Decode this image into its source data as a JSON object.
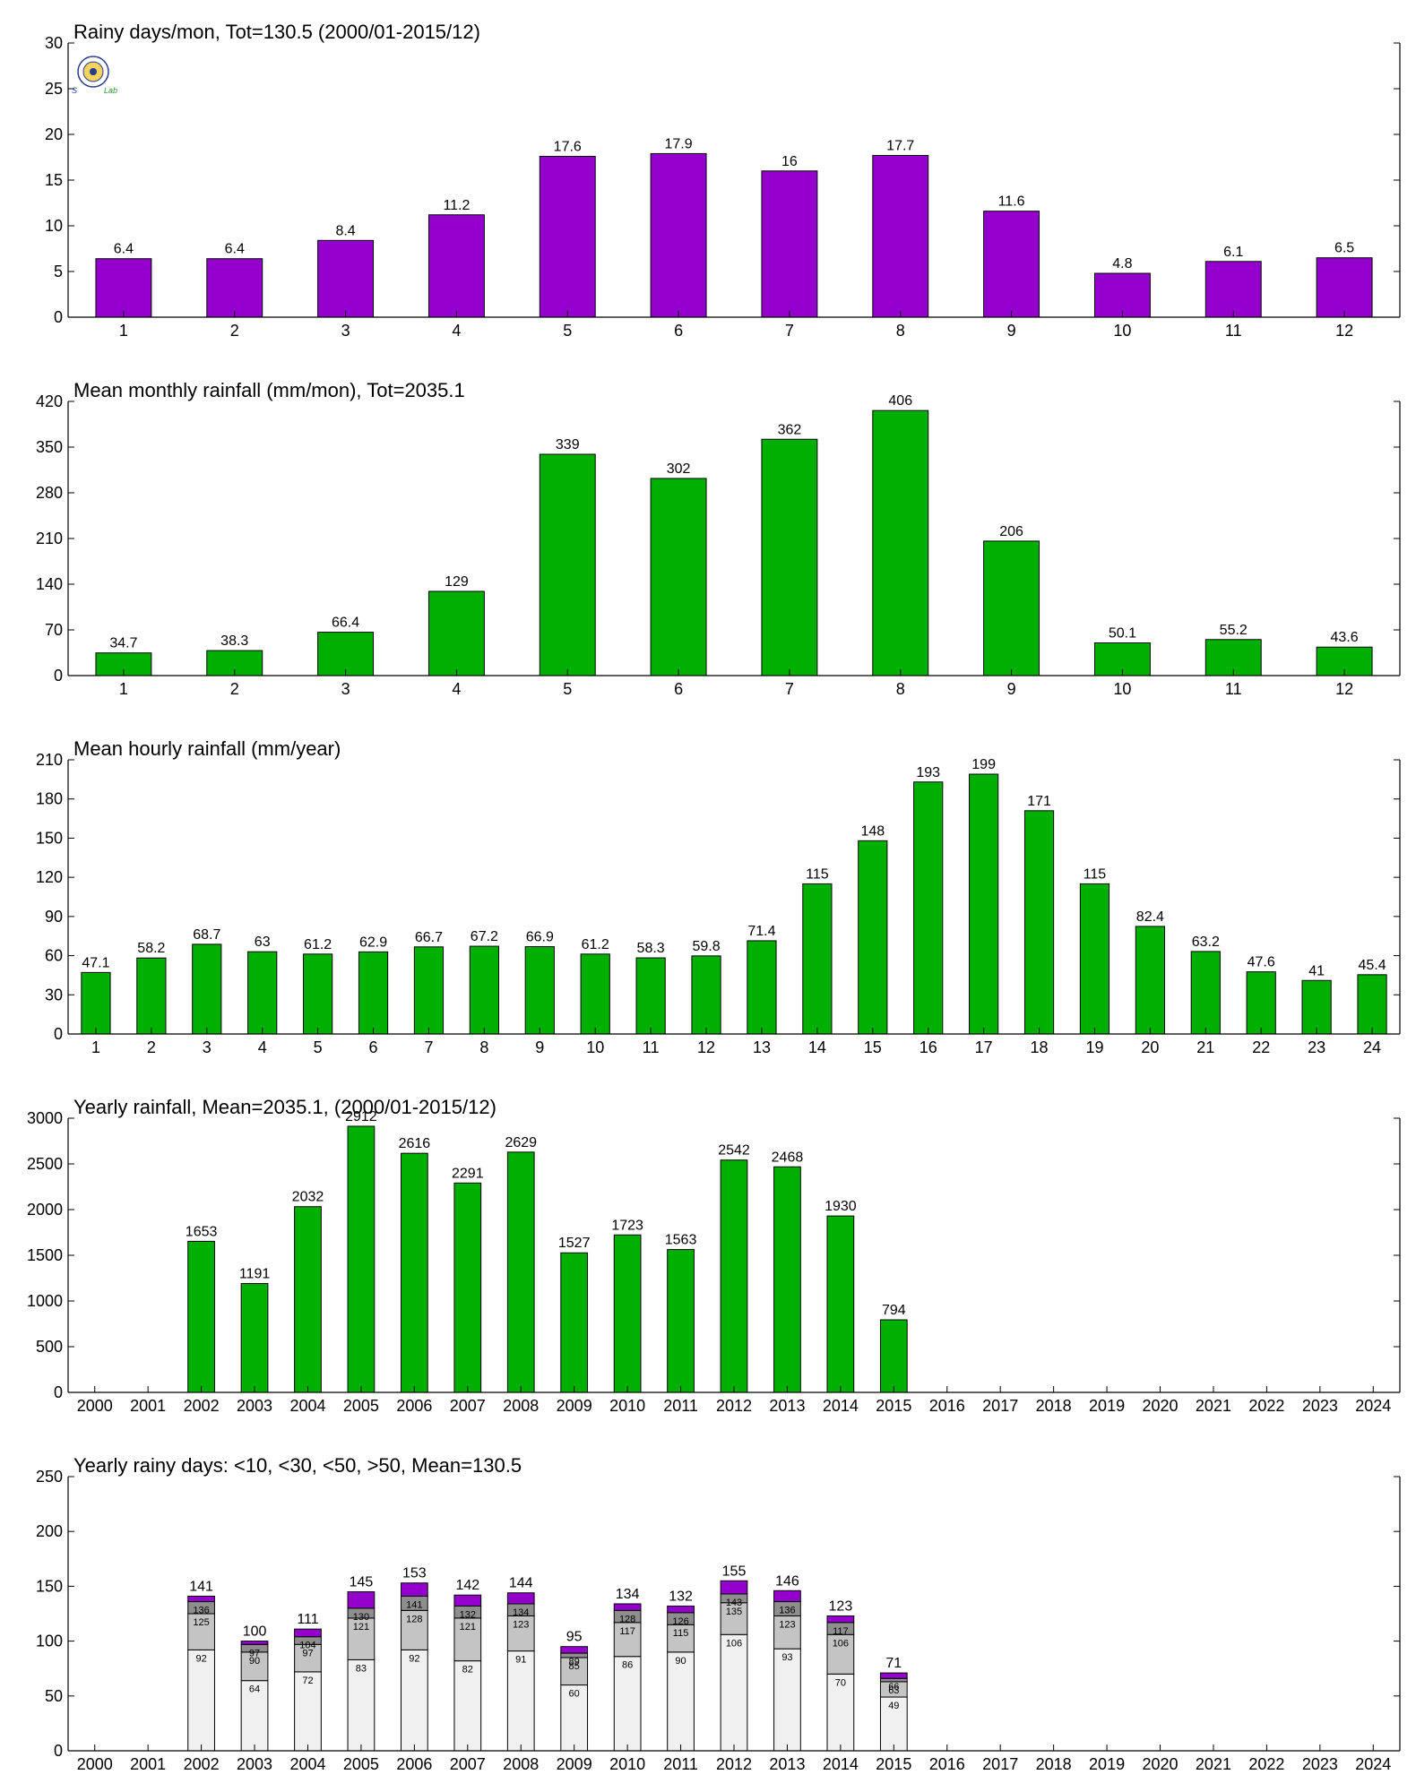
{
  "colors": {
    "purple": "#9400cc",
    "green": "#00b000",
    "stack": [
      "#f0f0f0",
      "#c4c4c4",
      "#8e8e8e",
      "#9400cc"
    ],
    "axis": "#000000"
  },
  "logo": {
    "icon": "weather-lab-logo",
    "text_left": "S",
    "text_right": "Lab"
  },
  "chart_data": [
    {
      "type": "bar",
      "title": "Rainy days/mon, Tot=130.5 (2000/01-2015/12)",
      "categories": [
        "1",
        "2",
        "3",
        "4",
        "5",
        "6",
        "7",
        "8",
        "9",
        "10",
        "11",
        "12"
      ],
      "values": [
        6.4,
        6.4,
        8.4,
        11.2,
        17.6,
        17.9,
        16,
        17.7,
        11.6,
        4.8,
        6.1,
        6.5
      ],
      "labels": [
        "6.4",
        "6.4",
        "8.4",
        "11.2",
        "17.6",
        "17.9",
        "16",
        "17.7",
        "11.6",
        "4.8",
        "6.1",
        "6.5"
      ],
      "ylim": [
        0,
        30
      ],
      "yticks": [
        0,
        5,
        10,
        15,
        20,
        25,
        30
      ],
      "color": "purple"
    },
    {
      "type": "bar",
      "title": "Mean monthly rainfall (mm/mon), Tot=2035.1",
      "categories": [
        "1",
        "2",
        "3",
        "4",
        "5",
        "6",
        "7",
        "8",
        "9",
        "10",
        "11",
        "12"
      ],
      "values": [
        34.7,
        38.3,
        66.4,
        129,
        339,
        302,
        362,
        406,
        206,
        50.1,
        55.2,
        43.6
      ],
      "labels": [
        "34.7",
        "38.3",
        "66.4",
        "129",
        "339",
        "302",
        "362",
        "406",
        "206",
        "50.1",
        "55.2",
        "43.6"
      ],
      "ylim": [
        0,
        420
      ],
      "yticks": [
        0,
        70,
        140,
        210,
        280,
        350,
        420
      ],
      "color": "green"
    },
    {
      "type": "bar",
      "title": "Mean hourly rainfall (mm/year)",
      "categories": [
        "1",
        "2",
        "3",
        "4",
        "5",
        "6",
        "7",
        "8",
        "9",
        "10",
        "11",
        "12",
        "13",
        "14",
        "15",
        "16",
        "17",
        "18",
        "19",
        "20",
        "21",
        "22",
        "23",
        "24"
      ],
      "values": [
        47.1,
        58.2,
        68.7,
        63,
        61.2,
        62.9,
        66.7,
        67.2,
        66.9,
        61.2,
        58.3,
        59.8,
        71.4,
        115,
        148,
        193,
        199,
        171,
        115,
        82.4,
        63.2,
        47.6,
        41,
        45.4
      ],
      "labels": [
        "47.1",
        "58.2",
        "68.7",
        "63",
        "61.2",
        "62.9",
        "66.7",
        "67.2",
        "66.9",
        "61.2",
        "58.3",
        "59.8",
        "71.4",
        "115",
        "148",
        "193",
        "199",
        "171",
        "115",
        "82.4",
        "63.2",
        "47.6",
        "41",
        "45.4"
      ],
      "ylim": [
        0,
        210
      ],
      "yticks": [
        0,
        30,
        60,
        90,
        120,
        150,
        180,
        210
      ],
      "color": "green"
    },
    {
      "type": "bar",
      "title": "Yearly rainfall, Mean=2035.1, (2000/01-2015/12)",
      "categories": [
        "2000",
        "2001",
        "2002",
        "2003",
        "2004",
        "2005",
        "2006",
        "2007",
        "2008",
        "2009",
        "2010",
        "2011",
        "2012",
        "2013",
        "2014",
        "2015",
        "2016",
        "2017",
        "2018",
        "2019",
        "2020",
        "2021",
        "2022",
        "2023",
        "2024"
      ],
      "values": [
        null,
        null,
        1653,
        1191,
        2032,
        2912,
        2616,
        2291,
        2629,
        1527,
        1723,
        1563,
        2542,
        2468,
        1930,
        794,
        null,
        null,
        null,
        null,
        null,
        null,
        null,
        null,
        null
      ],
      "labels": [
        "",
        "",
        "1653",
        "1191",
        "2032",
        "2912",
        "2616",
        "2291",
        "2629",
        "1527",
        "1723",
        "1563",
        "2542",
        "2468",
        "1930",
        "794",
        "",
        "",
        "",
        "",
        "",
        "",
        "",
        "",
        ""
      ],
      "ylim": [
        0,
        3000
      ],
      "yticks": [
        0,
        500,
        1000,
        1500,
        2000,
        2500,
        3000
      ],
      "color": "green"
    },
    {
      "type": "bar",
      "stacked": true,
      "title": "Yearly rainy days: <10, <30, <50, >50, Mean=130.5",
      "categories": [
        "2000",
        "2001",
        "2002",
        "2003",
        "2004",
        "2005",
        "2006",
        "2007",
        "2008",
        "2009",
        "2010",
        "2011",
        "2012",
        "2013",
        "2014",
        "2015",
        "2016",
        "2017",
        "2018",
        "2019",
        "2020",
        "2021",
        "2022",
        "2023",
        "2024"
      ],
      "cumulative": [
        null,
        null,
        [
          92,
          125,
          136,
          141
        ],
        [
          64,
          90,
          97,
          100
        ],
        [
          72,
          97,
          104,
          111
        ],
        [
          83,
          121,
          130,
          145
        ],
        [
          92,
          128,
          141,
          153
        ],
        [
          82,
          121,
          132,
          142
        ],
        [
          91,
          123,
          134,
          144
        ],
        [
          60,
          85,
          89,
          95
        ],
        [
          86,
          117,
          128,
          134
        ],
        [
          90,
          115,
          126,
          132
        ],
        [
          106,
          135,
          143,
          155
        ],
        [
          93,
          123,
          136,
          146
        ],
        [
          70,
          106,
          117,
          123
        ],
        [
          49,
          63,
          66,
          71
        ],
        null,
        null,
        null,
        null,
        null,
        null,
        null,
        null,
        null
      ],
      "segment_labels": [
        null,
        null,
        [
          "92",
          "125",
          "136"
        ],
        [
          "64",
          "90",
          "97"
        ],
        [
          "72",
          "97",
          "104"
        ],
        [
          "83",
          "121",
          "130"
        ],
        [
          "92",
          "128",
          "141"
        ],
        [
          "82",
          "121",
          "132"
        ],
        [
          "91",
          "123",
          "134"
        ],
        [
          "60",
          "85",
          "89"
        ],
        [
          "86",
          "117",
          "128"
        ],
        [
          "90",
          "115",
          "126"
        ],
        [
          "106",
          "135",
          "143"
        ],
        [
          "93",
          "123",
          "136"
        ],
        [
          "70",
          "106",
          "117"
        ],
        [
          "49",
          "63",
          "66"
        ],
        null,
        null,
        null,
        null,
        null,
        null,
        null,
        null,
        null
      ],
      "labels": [
        "",
        "",
        "141",
        "100",
        "111",
        "145",
        "153",
        "142",
        "144",
        "95",
        "134",
        "132",
        "155",
        "146",
        "123",
        "71",
        "",
        "",
        "",
        "",
        "",
        "",
        "",
        "",
        ""
      ],
      "ylim": [
        0,
        250
      ],
      "yticks": [
        0,
        50,
        100,
        150,
        200,
        250
      ],
      "colors": "stack"
    }
  ]
}
